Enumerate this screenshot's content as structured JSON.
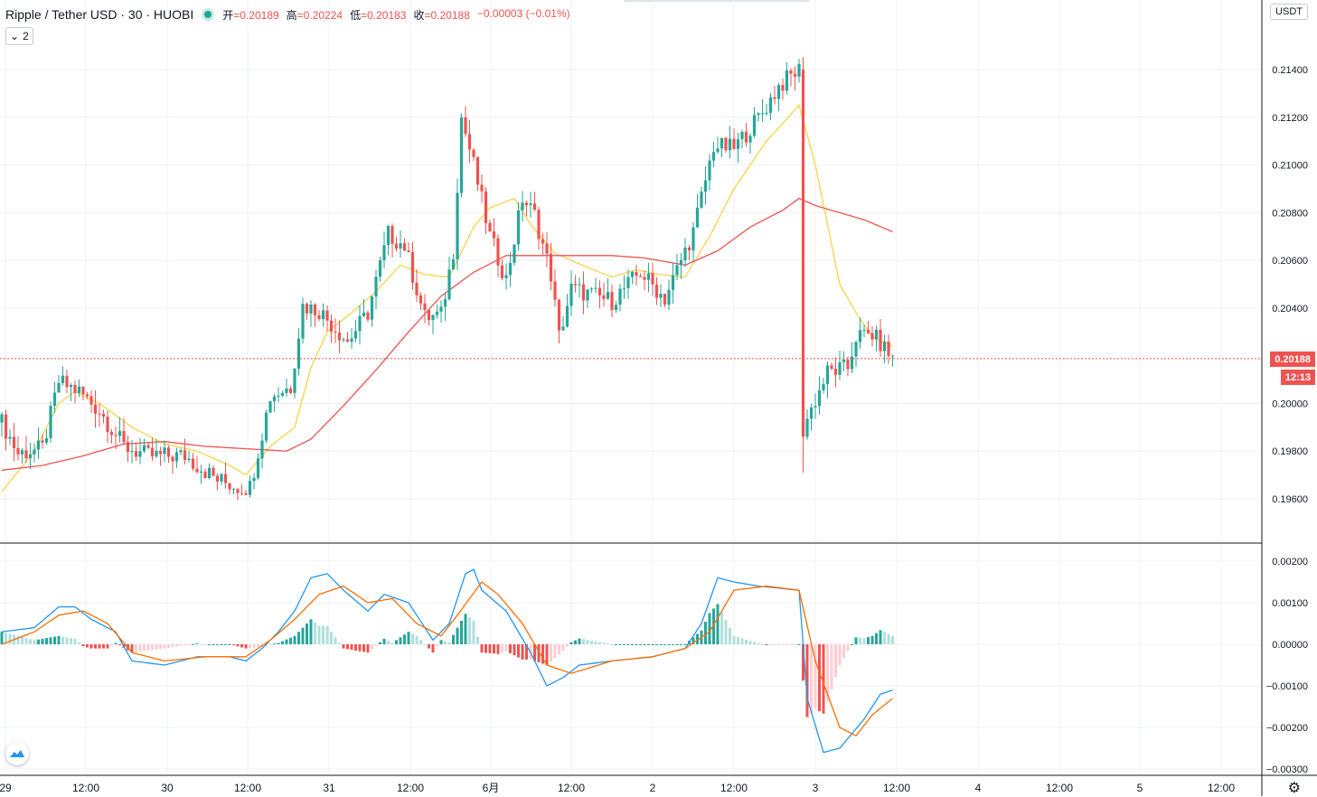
{
  "header": {
    "symbol": "Ripple / Tether USD · 30 · HUOBI",
    "ohlc": [
      {
        "label": "开",
        "value": "=0.20189"
      },
      {
        "label": "高",
        "value": "=0.20224"
      },
      {
        "label": "低",
        "value": "=0.20183"
      },
      {
        "label": "收",
        "value": "=0.20188"
      },
      {
        "label": "",
        "value": "−0.00003 (−0.01%)"
      }
    ],
    "collapse_count": "2"
  },
  "currency": "USDT",
  "last_price": "0.20188",
  "countdown": "12:13",
  "colors": {
    "up": "#26a69a",
    "down": "#ef5350",
    "ma_fast": "#f5d547",
    "ma_slow": "#ef5350",
    "macd": "#2196f3",
    "signal": "#ff6d00",
    "hist_up_strong": "#26a69a",
    "hist_up_weak": "#b2dfdb",
    "hist_down_strong": "#ef5350",
    "hist_down_weak": "#ffcdd2"
  },
  "chart_data": [
    {
      "type": "candlestick",
      "title": "Ripple / Tether USD · 30 · HUOBI",
      "ylim": [
        0.1945,
        0.218
      ],
      "y_ticks": [
        "0.21400",
        "0.21200",
        "0.21000",
        "0.20800",
        "0.20600",
        "0.20400",
        "0.20000",
        "0.19800",
        "0.19600"
      ],
      "x_ticks": [
        "29",
        "12:00",
        "30",
        "12:00",
        "31",
        "12:00",
        "6月",
        "12:00",
        "2",
        "12:00",
        "3",
        "12:00",
        "4",
        "12:00",
        "5",
        "12:00"
      ],
      "candle_guide": [
        [
          0,
          0.1992
        ],
        [
          4,
          0.1979
        ],
        [
          10,
          0.1981
        ],
        [
          14,
          0.2009
        ],
        [
          19,
          0.2005
        ],
        [
          24,
          0.1997
        ],
        [
          30,
          0.1982
        ],
        [
          36,
          0.1978
        ],
        [
          45,
          0.1978
        ],
        [
          53,
          0.1968
        ],
        [
          58,
          0.1965
        ],
        [
          61,
          0.1965
        ],
        [
          66,
          0.2003
        ],
        [
          71,
          0.2007
        ],
        [
          74,
          0.2041
        ],
        [
          78,
          0.2039
        ],
        [
          85,
          0.2026
        ],
        [
          90,
          0.2038
        ],
        [
          95,
          0.2071
        ],
        [
          99,
          0.2066
        ],
        [
          104,
          0.2036
        ],
        [
          108,
          0.2037
        ],
        [
          111,
          0.2064
        ],
        [
          113,
          0.212
        ],
        [
          116,
          0.21
        ],
        [
          120,
          0.207
        ],
        [
          124,
          0.2052
        ],
        [
          128,
          0.2086
        ],
        [
          131,
          0.2079
        ],
        [
          135,
          0.2054
        ],
        [
          137,
          0.2028
        ],
        [
          140,
          0.2048
        ],
        [
          150,
          0.2043
        ],
        [
          157,
          0.2055
        ],
        [
          163,
          0.2044
        ],
        [
          170,
          0.2072
        ],
        [
          175,
          0.2108
        ],
        [
          180,
          0.2107
        ],
        [
          187,
          0.2122
        ],
        [
          191,
          0.2133
        ],
        [
          196,
          0.214
        ],
        [
          197,
          0.199
        ],
        [
          203,
          0.2013
        ],
        [
          208,
          0.2015
        ],
        [
          210,
          0.2028
        ],
        [
          214,
          0.2029
        ],
        [
          219,
          0.2019
        ]
      ],
      "series": [
        {
          "name": "",
          "kind": "ma",
          "points": [
            [
              0,
              0.1963
            ],
            [
              8,
              0.198
            ],
            [
              14,
              0.2
            ],
            [
              18,
              0.2005
            ],
            [
              24,
              0.2
            ],
            [
              32,
              0.199
            ],
            [
              40,
              0.1983
            ],
            [
              48,
              0.198
            ],
            [
              56,
              0.1974
            ],
            [
              60,
              0.197
            ],
            [
              66,
              0.1982
            ],
            [
              72,
              0.199
            ],
            [
              76,
              0.2015
            ],
            [
              80,
              0.203
            ],
            [
              86,
              0.2038
            ],
            [
              92,
              0.2047
            ],
            [
              98,
              0.2058
            ],
            [
              104,
              0.2054
            ],
            [
              110,
              0.2053
            ],
            [
              116,
              0.2074
            ],
            [
              120,
              0.2082
            ],
            [
              126,
              0.2086
            ],
            [
              130,
              0.2075
            ],
            [
              136,
              0.2063
            ],
            [
              144,
              0.2057
            ],
            [
              150,
              0.2053
            ],
            [
              156,
              0.2056
            ],
            [
              162,
              0.2054
            ],
            [
              168,
              0.2053
            ],
            [
              174,
              0.207
            ],
            [
              180,
              0.209
            ],
            [
              188,
              0.211
            ],
            [
              196,
              0.2125
            ],
            [
              200,
              0.21
            ],
            [
              206,
              0.205
            ],
            [
              210,
              0.2038
            ],
            [
              214,
              0.2028
            ],
            [
              219,
              0.2024
            ]
          ]
        },
        {
          "name": "",
          "kind": "ma",
          "points": [
            [
              0,
              0.1972
            ],
            [
              10,
              0.1974
            ],
            [
              20,
              0.1978
            ],
            [
              30,
              0.1983
            ],
            [
              40,
              0.1984
            ],
            [
              50,
              0.1982
            ],
            [
              60,
              0.1981
            ],
            [
              70,
              0.198
            ],
            [
              76,
              0.1985
            ],
            [
              84,
              0.1999
            ],
            [
              92,
              0.2014
            ],
            [
              100,
              0.203
            ],
            [
              108,
              0.2045
            ],
            [
              116,
              0.2055
            ],
            [
              124,
              0.2062
            ],
            [
              130,
              0.2062
            ],
            [
              140,
              0.2062
            ],
            [
              150,
              0.2062
            ],
            [
              158,
              0.2061
            ],
            [
              168,
              0.2058
            ],
            [
              176,
              0.2064
            ],
            [
              184,
              0.2074
            ],
            [
              192,
              0.2081
            ],
            [
              196,
              0.2086
            ],
            [
              200,
              0.2083
            ],
            [
              206,
              0.208
            ],
            [
              212,
              0.2077
            ],
            [
              219,
              0.2072
            ]
          ]
        }
      ]
    },
    {
      "type": "line",
      "title": "",
      "ylim": [
        -0.0031,
        0.0022
      ],
      "y_ticks": [
        "0.00200",
        "0.00100",
        "0.00000",
        "−0.00100",
        "−0.00200",
        "−0.00300"
      ],
      "series": [
        {
          "name": "",
          "kind": "macd",
          "points": [
            [
              0,
              0.0003
            ],
            [
              8,
              0.0004
            ],
            [
              14,
              0.0009
            ],
            [
              18,
              0.0009
            ],
            [
              22,
              0.0006
            ],
            [
              28,
              0.0003
            ],
            [
              32,
              -0.0004
            ],
            [
              40,
              -0.0005
            ],
            [
              48,
              -0.0003
            ],
            [
              56,
              -0.0003
            ],
            [
              60,
              -0.0004
            ],
            [
              64,
              -0.0001
            ],
            [
              68,
              0.0003
            ],
            [
              72,
              0.0008
            ],
            [
              76,
              0.0016
            ],
            [
              80,
              0.0017
            ],
            [
              84,
              0.0013
            ],
            [
              90,
              0.0008
            ],
            [
              94,
              0.0012
            ],
            [
              100,
              0.001
            ],
            [
              106,
              0.0001
            ],
            [
              110,
              0.0005
            ],
            [
              114,
              0.0017
            ],
            [
              116,
              0.0018
            ],
            [
              118,
              0.0013
            ],
            [
              124,
              0.0008
            ],
            [
              130,
              -0.0002
            ],
            [
              134,
              -0.001
            ],
            [
              138,
              -0.0008
            ],
            [
              142,
              -0.0005
            ],
            [
              150,
              -0.0004
            ],
            [
              160,
              -0.0003
            ],
            [
              168,
              -0.0001
            ],
            [
              172,
              0.0005
            ],
            [
              176,
              0.0016
            ],
            [
              180,
              0.0015
            ],
            [
              186,
              0.0014
            ],
            [
              196,
              0.0013
            ],
            [
              198,
              -0.0013
            ],
            [
              202,
              -0.0026
            ],
            [
              206,
              -0.0025
            ],
            [
              212,
              -0.0018
            ],
            [
              216,
              -0.0012
            ],
            [
              219,
              -0.0011
            ]
          ]
        },
        {
          "name": "",
          "kind": "signal",
          "points": [
            [
              0,
              0.0
            ],
            [
              8,
              0.0003
            ],
            [
              14,
              0.0007
            ],
            [
              20,
              0.0008
            ],
            [
              26,
              0.0005
            ],
            [
              32,
              -0.0002
            ],
            [
              40,
              -0.0004
            ],
            [
              50,
              -0.0003
            ],
            [
              60,
              -0.0003
            ],
            [
              66,
              0.0001
            ],
            [
              72,
              0.0006
            ],
            [
              78,
              0.0012
            ],
            [
              84,
              0.0014
            ],
            [
              90,
              0.001
            ],
            [
              96,
              0.0011
            ],
            [
              102,
              0.0005
            ],
            [
              108,
              0.0002
            ],
            [
              112,
              0.0007
            ],
            [
              118,
              0.0015
            ],
            [
              122,
              0.0012
            ],
            [
              128,
              0.0005
            ],
            [
              134,
              -0.0005
            ],
            [
              140,
              -0.0007
            ],
            [
              150,
              -0.0004
            ],
            [
              160,
              -0.0003
            ],
            [
              168,
              -0.0001
            ],
            [
              174,
              0.0003
            ],
            [
              180,
              0.0013
            ],
            [
              188,
              0.0014
            ],
            [
              196,
              0.0013
            ],
            [
              200,
              -0.0004
            ],
            [
              206,
              -0.002
            ],
            [
              210,
              -0.0022
            ],
            [
              214,
              -0.0017
            ],
            [
              219,
              -0.0013
            ]
          ]
        }
      ]
    }
  ]
}
